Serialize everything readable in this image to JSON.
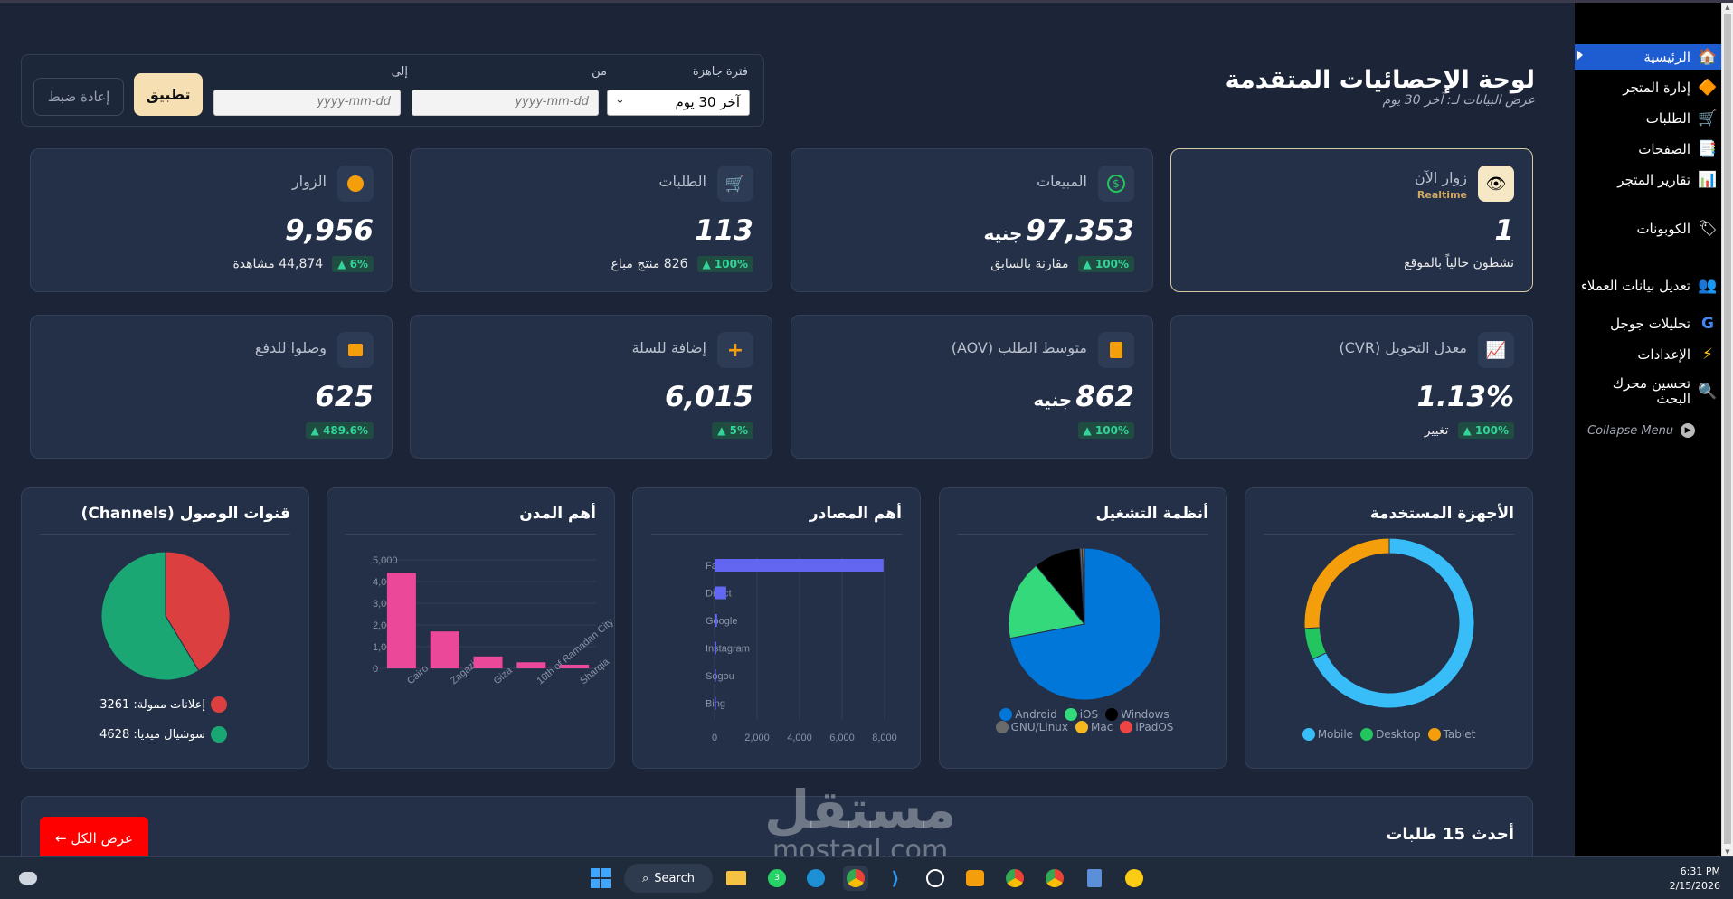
{
  "header": {
    "title": "لوحة الإحصائيات المتقدمة",
    "subtitle": "عرض البيانات لـ: آخر 30 يوم"
  },
  "filters": {
    "preset_label": "فترة جاهزة",
    "preset_value": "آخر 30 يوم",
    "from_label": "من",
    "to_label": "إلى",
    "date_placeholder": "yyyy-mm-dd",
    "apply": "تطبيق",
    "reset": "إعادة ضبط"
  },
  "sidebar": {
    "items": [
      {
        "label": "الرئيسية",
        "icon": "home-icon",
        "active": true
      },
      {
        "label": "إدارة المتجر",
        "icon": "shapes-icon"
      },
      {
        "label": "الطلبات",
        "icon": "cart-icon"
      },
      {
        "label": "الصفحات",
        "icon": "pages-icon"
      },
      {
        "label": "تقارير المتجر",
        "icon": "report-icon"
      },
      {
        "label": "الكوبونات",
        "icon": "coupon-icon"
      },
      {
        "label": "تعديل بيانات العملاء",
        "icon": "users-icon"
      },
      {
        "label": "تحليلات جوجل",
        "icon": "google-icon"
      },
      {
        "label": "الإعدادات",
        "icon": "bolt-icon"
      },
      {
        "label": "تحسين محرك البحث",
        "icon": "search-icon"
      }
    ],
    "collapse": "Collapse Menu"
  },
  "stats": [
    {
      "title": "زوار الآن",
      "sub": "Realtime",
      "value": "1",
      "unit": "",
      "badge": "",
      "note": "نشطون حالياً بالموقع",
      "icon": "eye-icon"
    },
    {
      "title": "المبيعات",
      "value": "97,353",
      "unit": "جنيه",
      "badge": "▲ 100%",
      "note": "مقارنة بالسابق",
      "icon": "dollar-icon"
    },
    {
      "title": "الطلبات",
      "value": "113",
      "unit": "",
      "badge": "▲ 100%",
      "note": "826 منتج مباع",
      "icon": "cart-icon"
    },
    {
      "title": "الزوار",
      "value": "9,956",
      "unit": "",
      "badge": "▲ 6%",
      "note": "44,874 مشاهدة",
      "icon": "people-icon"
    },
    {
      "title": "معدل التحويل (CVR)",
      "value": "1.13%",
      "unit": "",
      "badge": "▲ 100%",
      "note": "تغيير",
      "icon": "chart-icon"
    },
    {
      "title": "متوسط الطلب (AOV)",
      "value": "862",
      "unit": "جنيه",
      "badge": "▲ 100%",
      "note": "",
      "icon": "calculator-icon"
    },
    {
      "title": "إضافة للسلة",
      "value": "6,015",
      "unit": "",
      "badge": "▲ 5%",
      "note": "",
      "icon": "plus-icon"
    },
    {
      "title": "وصلوا للدفع",
      "value": "625",
      "unit": "",
      "badge": "▲ 489.6%",
      "note": "",
      "icon": "wallet-icon"
    }
  ],
  "panels": {
    "devices": "الأجهزة المستخدمة",
    "os": "أنظمة التشغيل",
    "sources": "أهم المصادر",
    "cities": "أهم المدن",
    "channels": "قنوات الوصول (Channels)"
  },
  "chart_data": [
    {
      "type": "pie",
      "variant": "doughnut",
      "labels": [
        "Mobile",
        "Desktop",
        "Tablet"
      ],
      "values": [
        68,
        6,
        26
      ],
      "colors": [
        "#38bdf8",
        "#22c55e",
        "#f59e0b"
      ],
      "legend": "bottom"
    },
    {
      "type": "pie",
      "labels": [
        "Android",
        "iOS",
        "Windows",
        "GNU/Linux",
        "Mac",
        "iPadOS"
      ],
      "values": [
        72,
        17,
        10,
        0.5,
        0.3,
        0.2
      ],
      "colors": [
        "#0077d9",
        "#34d97b",
        "#000000",
        "#6b6b6b",
        "#f5b821",
        "#ef4444"
      ],
      "legend": "bottom"
    },
    {
      "type": "bar",
      "orientation": "horizontal",
      "categories": [
        "Facebook",
        "Direct",
        "Google",
        "Instagram",
        "Sogou",
        "Bing"
      ],
      "values": [
        7950,
        550,
        120,
        80,
        40,
        30
      ],
      "xlim": [
        0,
        8000
      ],
      "xticks": [
        "0",
        "2,000",
        "4,000",
        "6,000",
        "8,000"
      ],
      "color": "#6366f1",
      "grid": true
    },
    {
      "type": "bar",
      "categories": [
        "Cairo",
        "Zagazig",
        "Giza",
        "10th of Ramadan City",
        "Sharqia"
      ],
      "values": [
        4400,
        1700,
        550,
        280,
        170
      ],
      "ylim": [
        0,
        5000
      ],
      "yticks": [
        "0",
        "1,000",
        "2,000",
        "3,000",
        "4,000",
        "5,000"
      ],
      "color": "#ec4899",
      "grid": true
    },
    {
      "type": "pie",
      "labels": [
        "إعلانات ممولة: 3261",
        "سوشيال ميديا: 4628"
      ],
      "values": [
        3261,
        4628
      ],
      "colors": [
        "#dc3f3f",
        "#1aa774"
      ],
      "legend": "bottom"
    }
  ],
  "recent": {
    "title": "أحدث 15 طلبات",
    "view_all": "عرض الكل ←"
  },
  "watermark": {
    "ar": "مستقل",
    "en": "mostaql.com"
  },
  "taskbar": {
    "search": "Search",
    "time": "6:31 PM",
    "date": "2/15/2026",
    "badge": "3"
  }
}
